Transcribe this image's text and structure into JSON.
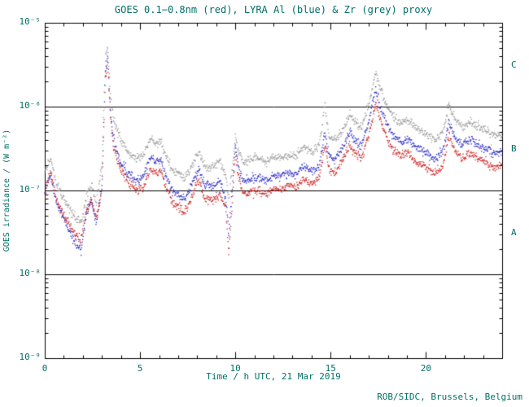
{
  "footer": "ROB/SIDC, Brussels, Belgium",
  "colors": {
    "text": "#007068",
    "axis": "#000000",
    "red": "#cc2020",
    "blue": "#2828c8",
    "grey": "#9a9a9a",
    "background": "#ffffff"
  },
  "chart_data": {
    "type": "scatter",
    "title": "GOES 0.1−0.8nm (red), LYRA Al (blue) & Zr (grey) proxy",
    "xlabel": "Time / h UTC, 21 Mar 2019",
    "ylabel": "GOES irradiance / (W m⁻²)",
    "x_range": [
      0,
      24
    ],
    "y_scale": "log",
    "y_range": [
      1e-09,
      1e-05
    ],
    "grid": false,
    "x_ticks": [
      {
        "value": 0,
        "label": "0"
      },
      {
        "value": 5,
        "label": "5"
      },
      {
        "value": 10,
        "label": "10"
      },
      {
        "value": 15,
        "label": "15"
      },
      {
        "value": 20,
        "label": "20"
      }
    ],
    "y_ticks": [
      {
        "value": 1e-05,
        "label": "10⁻⁵"
      },
      {
        "value": 1e-06,
        "label": "10⁻⁶"
      },
      {
        "value": 1e-07,
        "label": "10⁻⁷"
      },
      {
        "value": 1e-08,
        "label": "10⁻⁸"
      },
      {
        "value": 1e-09,
        "label": "10⁻⁹"
      }
    ],
    "class_lines": [
      1e-06,
      1e-07,
      1e-08
    ],
    "class_labels": [
      {
        "label": "C",
        "at": 3.16e-06
      },
      {
        "label": "B",
        "at": 3.16e-07
      },
      {
        "label": "A",
        "at": 3.16e-08
      }
    ],
    "series": [
      {
        "name": "GOES 0.1-0.8nm",
        "color_key": "red",
        "points": [
          [
            0.0,
            9e-08
          ],
          [
            0.3,
            1.7e-07
          ],
          [
            0.6,
            8e-08
          ],
          [
            1.0,
            5e-08
          ],
          [
            1.5,
            3.2e-08
          ],
          [
            1.9,
            2.6e-08
          ],
          [
            2.2,
            6e-08
          ],
          [
            2.45,
            8e-08
          ],
          [
            2.7,
            4.5e-08
          ],
          [
            3.0,
            1.1e-07
          ],
          [
            3.18,
            2.2e-06
          ],
          [
            3.3,
            3.5e-06
          ],
          [
            3.45,
            7e-07
          ],
          [
            3.6,
            3.5e-07
          ],
          [
            3.9,
            2e-07
          ],
          [
            4.3,
            1.3e-07
          ],
          [
            4.8,
            1e-07
          ],
          [
            5.2,
            1.1e-07
          ],
          [
            5.55,
            1.9e-07
          ],
          [
            5.8,
            1.6e-07
          ],
          [
            6.1,
            1.7e-07
          ],
          [
            6.4,
            1e-07
          ],
          [
            6.7,
            7e-08
          ],
          [
            7.0,
            6.5e-08
          ],
          [
            7.3,
            5.5e-08
          ],
          [
            7.6,
            7e-08
          ],
          [
            7.9,
            1.1e-07
          ],
          [
            8.1,
            1.3e-07
          ],
          [
            8.4,
            8e-08
          ],
          [
            8.8,
            7.5e-08
          ],
          [
            9.2,
            9e-08
          ],
          [
            9.5,
            6e-08
          ],
          [
            9.65,
            1.8e-08
          ],
          [
            9.85,
            8e-08
          ],
          [
            10.0,
            2.8e-07
          ],
          [
            10.15,
            1.5e-07
          ],
          [
            10.4,
            9e-08
          ],
          [
            10.8,
            9.5e-08
          ],
          [
            11.2,
            1e-07
          ],
          [
            11.6,
            9e-08
          ],
          [
            12.0,
            1.05e-07
          ],
          [
            12.4,
            1e-07
          ],
          [
            12.8,
            1.15e-07
          ],
          [
            13.2,
            1.1e-07
          ],
          [
            13.6,
            1.4e-07
          ],
          [
            14.0,
            1.2e-07
          ],
          [
            14.4,
            1.4e-07
          ],
          [
            14.7,
            3.5e-07
          ],
          [
            14.9,
            1.8e-07
          ],
          [
            15.2,
            1.6e-07
          ],
          [
            15.6,
            2.2e-07
          ],
          [
            16.0,
            3.5e-07
          ],
          [
            16.3,
            2.8e-07
          ],
          [
            16.6,
            2.4e-07
          ],
          [
            17.0,
            4.5e-07
          ],
          [
            17.35,
            1.1e-06
          ],
          [
            17.6,
            7e-07
          ],
          [
            17.9,
            4.5e-07
          ],
          [
            18.3,
            3e-07
          ],
          [
            18.7,
            2.6e-07
          ],
          [
            19.1,
            2.8e-07
          ],
          [
            19.5,
            2.2e-07
          ],
          [
            20.0,
            1.9e-07
          ],
          [
            20.5,
            1.6e-07
          ],
          [
            20.9,
            2e-07
          ],
          [
            21.2,
            4.5e-07
          ],
          [
            21.5,
            3e-07
          ],
          [
            21.9,
            2.4e-07
          ],
          [
            22.3,
            2.8e-07
          ],
          [
            22.7,
            2.4e-07
          ],
          [
            23.1,
            2.2e-07
          ],
          [
            23.5,
            1.9e-07
          ],
          [
            24.0,
            1.9e-07
          ]
        ]
      },
      {
        "name": "LYRA Al proxy",
        "color_key": "blue",
        "points": [
          [
            0.0,
            1e-07
          ],
          [
            0.3,
            1.5e-07
          ],
          [
            0.6,
            7e-08
          ],
          [
            1.0,
            4.5e-08
          ],
          [
            1.5,
            2.6e-08
          ],
          [
            1.9,
            1.9e-08
          ],
          [
            2.2,
            5.5e-08
          ],
          [
            2.45,
            7.5e-08
          ],
          [
            2.7,
            4e-08
          ],
          [
            3.0,
            1.2e-07
          ],
          [
            3.18,
            2.6e-06
          ],
          [
            3.3,
            4e-06
          ],
          [
            3.45,
            8e-07
          ],
          [
            3.6,
            4e-07
          ],
          [
            3.9,
            2.4e-07
          ],
          [
            4.3,
            1.6e-07
          ],
          [
            4.8,
            1.3e-07
          ],
          [
            5.2,
            1.5e-07
          ],
          [
            5.55,
            2.6e-07
          ],
          [
            5.8,
            2.2e-07
          ],
          [
            6.1,
            2.3e-07
          ],
          [
            6.4,
            1.4e-07
          ],
          [
            6.7,
            1e-07
          ],
          [
            7.0,
            9e-08
          ],
          [
            7.3,
            8e-08
          ],
          [
            7.6,
            1e-07
          ],
          [
            7.9,
            1.5e-07
          ],
          [
            8.1,
            1.8e-07
          ],
          [
            8.4,
            1.2e-07
          ],
          [
            8.8,
            1.1e-07
          ],
          [
            9.2,
            1.3e-07
          ],
          [
            9.5,
            8e-08
          ],
          [
            9.65,
            3e-08
          ],
          [
            9.85,
            1.1e-07
          ],
          [
            10.0,
            3.4e-07
          ],
          [
            10.15,
            2e-07
          ],
          [
            10.4,
            1.3e-07
          ],
          [
            10.8,
            1.35e-07
          ],
          [
            11.2,
            1.45e-07
          ],
          [
            11.6,
            1.3e-07
          ],
          [
            12.0,
            1.5e-07
          ],
          [
            12.4,
            1.45e-07
          ],
          [
            12.8,
            1.6e-07
          ],
          [
            13.2,
            1.55e-07
          ],
          [
            13.6,
            2e-07
          ],
          [
            14.0,
            1.7e-07
          ],
          [
            14.4,
            2e-07
          ],
          [
            14.7,
            5e-07
          ],
          [
            14.9,
            2.6e-07
          ],
          [
            15.2,
            2.3e-07
          ],
          [
            15.6,
            3.1e-07
          ],
          [
            16.0,
            5e-07
          ],
          [
            16.3,
            4e-07
          ],
          [
            16.6,
            3.4e-07
          ],
          [
            17.0,
            6.5e-07
          ],
          [
            17.35,
            1.6e-06
          ],
          [
            17.6,
            1e-06
          ],
          [
            17.9,
            6.5e-07
          ],
          [
            18.3,
            4.4e-07
          ],
          [
            18.7,
            3.8e-07
          ],
          [
            19.1,
            4.1e-07
          ],
          [
            19.5,
            3.2e-07
          ],
          [
            20.0,
            2.8e-07
          ],
          [
            20.5,
            2.4e-07
          ],
          [
            20.9,
            3e-07
          ],
          [
            21.2,
            6.5e-07
          ],
          [
            21.5,
            4.4e-07
          ],
          [
            21.9,
            3.5e-07
          ],
          [
            22.3,
            4.1e-07
          ],
          [
            22.7,
            3.5e-07
          ],
          [
            23.1,
            3.2e-07
          ],
          [
            23.5,
            2.8e-07
          ],
          [
            24.0,
            2.8e-07
          ]
        ]
      },
      {
        "name": "LYRA Zr proxy",
        "color_key": "grey",
        "points": [
          [
            0.0,
            1.6e-07
          ],
          [
            0.3,
            2.4e-07
          ],
          [
            0.6,
            1.2e-07
          ],
          [
            1.0,
            8e-08
          ],
          [
            1.5,
            5e-08
          ],
          [
            1.9,
            4e-08
          ],
          [
            2.2,
            9e-08
          ],
          [
            2.45,
            1.2e-07
          ],
          [
            2.7,
            7e-08
          ],
          [
            3.0,
            2e-07
          ],
          [
            3.18,
            3.8e-06
          ],
          [
            3.3,
            5.5e-06
          ],
          [
            3.45,
            1.3e-06
          ],
          [
            3.6,
            7e-07
          ],
          [
            3.9,
            4.5e-07
          ],
          [
            4.3,
            3e-07
          ],
          [
            4.8,
            2.4e-07
          ],
          [
            5.2,
            2.7e-07
          ],
          [
            5.55,
            4.2e-07
          ],
          [
            5.8,
            3.6e-07
          ],
          [
            6.1,
            3.8e-07
          ],
          [
            6.4,
            2.4e-07
          ],
          [
            6.7,
            1.8e-07
          ],
          [
            7.0,
            1.6e-07
          ],
          [
            7.3,
            1.4e-07
          ],
          [
            7.6,
            1.7e-07
          ],
          [
            7.9,
            2.4e-07
          ],
          [
            8.1,
            2.8e-07
          ],
          [
            8.4,
            2e-07
          ],
          [
            8.8,
            1.9e-07
          ],
          [
            9.2,
            2.2e-07
          ],
          [
            9.5,
            1.5e-07
          ],
          [
            9.65,
            8e-08
          ],
          [
            9.85,
            1.9e-07
          ],
          [
            10.0,
            4.5e-07
          ],
          [
            10.15,
            3e-07
          ],
          [
            10.4,
            2.2e-07
          ],
          [
            10.8,
            2.3e-07
          ],
          [
            11.2,
            2.5e-07
          ],
          [
            11.6,
            2.2e-07
          ],
          [
            12.0,
            2.5e-07
          ],
          [
            12.4,
            2.4e-07
          ],
          [
            12.8,
            2.7e-07
          ],
          [
            13.2,
            2.6e-07
          ],
          [
            13.6,
            3.3e-07
          ],
          [
            14.0,
            2.9e-07
          ],
          [
            14.4,
            3.4e-07
          ],
          [
            14.7,
            1.1e-06
          ],
          [
            14.9,
            4.4e-07
          ],
          [
            15.2,
            3.9e-07
          ],
          [
            15.6,
            5.2e-07
          ],
          [
            16.0,
            8e-07
          ],
          [
            16.3,
            6.5e-07
          ],
          [
            16.6,
            5.6e-07
          ],
          [
            17.0,
            1.05e-06
          ],
          [
            17.35,
            2.6e-06
          ],
          [
            17.6,
            1.7e-06
          ],
          [
            17.9,
            1.1e-06
          ],
          [
            18.3,
            7.5e-07
          ],
          [
            18.7,
            6.4e-07
          ],
          [
            19.1,
            6.8e-07
          ],
          [
            19.5,
            5.4e-07
          ],
          [
            20.0,
            4.7e-07
          ],
          [
            20.5,
            4e-07
          ],
          [
            20.9,
            5e-07
          ],
          [
            21.2,
            1.05e-06
          ],
          [
            21.5,
            7.2e-07
          ],
          [
            21.9,
            5.8e-07
          ],
          [
            22.3,
            6.6e-07
          ],
          [
            22.7,
            5.8e-07
          ],
          [
            23.1,
            5.3e-07
          ],
          [
            23.5,
            4.6e-07
          ],
          [
            24.0,
            4.6e-07
          ]
        ]
      }
    ]
  }
}
